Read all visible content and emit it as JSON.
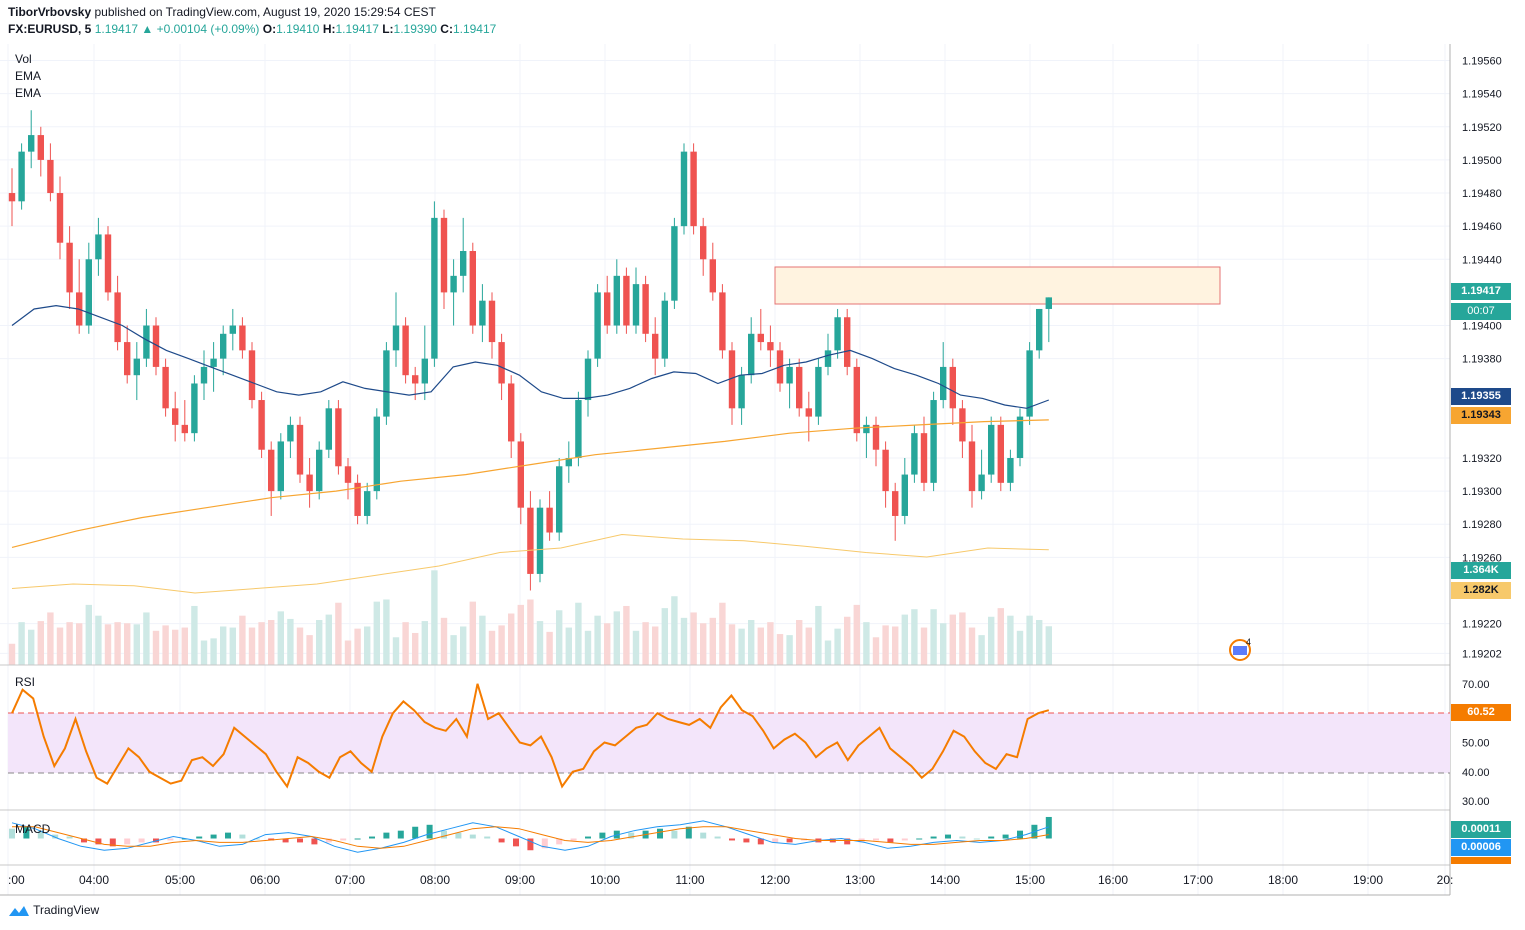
{
  "header": {
    "publisher": "TiborVrbovsky",
    "published_text": "published on TradingView.com, August 19, 2020 15:29:54 CEST",
    "symbol": "FX:EURUSD, 5",
    "last": "1.19417",
    "change": "▲ +0.00104 (+0.09%)",
    "o_label": "O:",
    "o": "1.19410",
    "h_label": "H:",
    "h": "1.19417",
    "l_label": "L:",
    "l": "1.19390",
    "c_label": "C:",
    "c": "1.19417"
  },
  "indicators": {
    "vol": "Vol",
    "ema1": "EMA",
    "ema2": "EMA",
    "rsi": "RSI",
    "macd": "MACD"
  },
  "price_axis": [
    "1.19560",
    "1.19540",
    "1.19520",
    "1.19500",
    "1.19480",
    "1.19460",
    "1.19440",
    "1.19400",
    "1.19380",
    "1.19320",
    "1.19300",
    "1.19280",
    "1.19260",
    "1.19220",
    "1.19202"
  ],
  "price_boxes": {
    "last": "1.19417",
    "countdown": "00:07",
    "ema_fast": "1.19355",
    "ema_slow": "1.19343",
    "vol": "1.364K",
    "vol_ma": "1.282K",
    "rsi": "60.52",
    "macd_hist": "0.00011",
    "macd_line": "0.00006"
  },
  "rsi_axis": [
    "70.00",
    "50.00",
    "40.00",
    "30.00"
  ],
  "time_axis": [
    ":00",
    "04:00",
    "05:00",
    "06:00",
    "07:00",
    "08:00",
    "09:00",
    "10:00",
    "11:00",
    "12:00",
    "13:00",
    "14:00",
    "15:00",
    "16:00",
    "17:00",
    "18:00",
    "19:00",
    "20:"
  ],
  "footer": {
    "brand": "TradingView"
  },
  "colors": {
    "up": "#26a69a",
    "down": "#ef5350",
    "ema_fast": "#1e4a8a",
    "ema_slow": "#f7a531",
    "rsi": "#f57c00",
    "rsi_band": "#f3e5fa"
  },
  "chart_data": {
    "type": "candlestick",
    "instrument": "FX:EURUSD",
    "interval": "5",
    "y_range": [
      1.19195,
      1.1957
    ],
    "candles": [
      [
        1.1948,
        1.19495,
        1.1946,
        1.19475
      ],
      [
        1.19475,
        1.1951,
        1.1947,
        1.19505
      ],
      [
        1.19505,
        1.1953,
        1.19495,
        1.19515
      ],
      [
        1.19515,
        1.1952,
        1.1949,
        1.195
      ],
      [
        1.195,
        1.1951,
        1.19475,
        1.1948
      ],
      [
        1.1948,
        1.1949,
        1.1944,
        1.1945
      ],
      [
        1.1945,
        1.1946,
        1.1941,
        1.1942
      ],
      [
        1.1942,
        1.1944,
        1.19395,
        1.194
      ],
      [
        1.194,
        1.1945,
        1.19395,
        1.1944
      ],
      [
        1.1944,
        1.19465,
        1.1943,
        1.19455
      ],
      [
        1.19455,
        1.1946,
        1.19415,
        1.1942
      ],
      [
        1.1942,
        1.1943,
        1.19385,
        1.1939
      ],
      [
        1.1939,
        1.194,
        1.19365,
        1.1937
      ],
      [
        1.1937,
        1.1939,
        1.19355,
        1.1938
      ],
      [
        1.1938,
        1.1941,
        1.19375,
        1.194
      ],
      [
        1.194,
        1.19405,
        1.1937,
        1.19375
      ],
      [
        1.19375,
        1.1938,
        1.19345,
        1.1935
      ],
      [
        1.1935,
        1.1936,
        1.1933,
        1.1934
      ],
      [
        1.1934,
        1.19355,
        1.1933,
        1.19335
      ],
      [
        1.19335,
        1.1937,
        1.1933,
        1.19365
      ],
      [
        1.19365,
        1.19385,
        1.19355,
        1.19375
      ],
      [
        1.19375,
        1.1939,
        1.1936,
        1.1938
      ],
      [
        1.1938,
        1.194,
        1.1937,
        1.19395
      ],
      [
        1.19395,
        1.1941,
        1.19385,
        1.194
      ],
      [
        1.194,
        1.19405,
        1.1938,
        1.19385
      ],
      [
        1.19385,
        1.1939,
        1.1935,
        1.19355
      ],
      [
        1.19355,
        1.1936,
        1.1932,
        1.19325
      ],
      [
        1.19325,
        1.1933,
        1.19285,
        1.193
      ],
      [
        1.193,
        1.19335,
        1.19295,
        1.1933
      ],
      [
        1.1933,
        1.19345,
        1.1932,
        1.1934
      ],
      [
        1.1934,
        1.19345,
        1.19305,
        1.1931
      ],
      [
        1.1931,
        1.1932,
        1.1929,
        1.193
      ],
      [
        1.193,
        1.1933,
        1.19295,
        1.19325
      ],
      [
        1.19325,
        1.19355,
        1.1932,
        1.1935
      ],
      [
        1.1935,
        1.19355,
        1.1931,
        1.19315
      ],
      [
        1.19315,
        1.1932,
        1.19295,
        1.19305
      ],
      [
        1.19305,
        1.1931,
        1.1928,
        1.19285
      ],
      [
        1.19285,
        1.19305,
        1.1928,
        1.193
      ],
      [
        1.193,
        1.1935,
        1.19295,
        1.19345
      ],
      [
        1.19345,
        1.1939,
        1.1934,
        1.19385
      ],
      [
        1.19385,
        1.1942,
        1.19375,
        1.194
      ],
      [
        1.194,
        1.19405,
        1.19365,
        1.1937
      ],
      [
        1.1937,
        1.19375,
        1.19355,
        1.19365
      ],
      [
        1.19365,
        1.194,
        1.19355,
        1.1938
      ],
      [
        1.1938,
        1.19475,
        1.19375,
        1.19465
      ],
      [
        1.19465,
        1.1947,
        1.1941,
        1.1942
      ],
      [
        1.1942,
        1.1944,
        1.194,
        1.1943
      ],
      [
        1.1943,
        1.19465,
        1.1942,
        1.19445
      ],
      [
        1.19445,
        1.1945,
        1.19395,
        1.194
      ],
      [
        1.194,
        1.19425,
        1.1939,
        1.19415
      ],
      [
        1.19415,
        1.1942,
        1.1938,
        1.1939
      ],
      [
        1.1939,
        1.19395,
        1.19355,
        1.19365
      ],
      [
        1.19365,
        1.1937,
        1.1932,
        1.1933
      ],
      [
        1.1933,
        1.19335,
        1.1928,
        1.1929
      ],
      [
        1.1929,
        1.193,
        1.1924,
        1.1925
      ],
      [
        1.1925,
        1.19295,
        1.19245,
        1.1929
      ],
      [
        1.1929,
        1.193,
        1.1927,
        1.19275
      ],
      [
        1.19275,
        1.1932,
        1.1927,
        1.19315
      ],
      [
        1.19315,
        1.1933,
        1.19305,
        1.1932
      ],
      [
        1.1932,
        1.1936,
        1.19315,
        1.19355
      ],
      [
        1.19355,
        1.19385,
        1.19345,
        1.1938
      ],
      [
        1.1938,
        1.19425,
        1.19375,
        1.1942
      ],
      [
        1.1942,
        1.1943,
        1.19395,
        1.194
      ],
      [
        1.194,
        1.1944,
        1.19395,
        1.1943
      ],
      [
        1.1943,
        1.19435,
        1.19395,
        1.194
      ],
      [
        1.194,
        1.19435,
        1.19395,
        1.19425
      ],
      [
        1.19425,
        1.1943,
        1.1939,
        1.19395
      ],
      [
        1.19395,
        1.19405,
        1.1937,
        1.1938
      ],
      [
        1.1938,
        1.1942,
        1.19375,
        1.19415
      ],
      [
        1.19415,
        1.19465,
        1.1941,
        1.1946
      ],
      [
        1.1946,
        1.1951,
        1.19455,
        1.19505
      ],
      [
        1.19505,
        1.1951,
        1.19455,
        1.1946
      ],
      [
        1.1946,
        1.19465,
        1.1943,
        1.1944
      ],
      [
        1.1944,
        1.1945,
        1.19415,
        1.1942
      ],
      [
        1.1942,
        1.19425,
        1.1938,
        1.19385
      ],
      [
        1.19385,
        1.1939,
        1.1934,
        1.1935
      ],
      [
        1.1935,
        1.19375,
        1.1934,
        1.1937
      ],
      [
        1.1937,
        1.19405,
        1.19365,
        1.19395
      ],
      [
        1.19395,
        1.1941,
        1.19385,
        1.1939
      ],
      [
        1.1939,
        1.194,
        1.19375,
        1.19385
      ],
      [
        1.19385,
        1.1939,
        1.1936,
        1.19365
      ],
      [
        1.19365,
        1.1938,
        1.1935,
        1.19375
      ],
      [
        1.19375,
        1.1938,
        1.19345,
        1.1935
      ],
      [
        1.1935,
        1.1936,
        1.1933,
        1.19345
      ],
      [
        1.19345,
        1.1938,
        1.1934,
        1.19375
      ],
      [
        1.19375,
        1.19395,
        1.1937,
        1.19385
      ],
      [
        1.19385,
        1.1941,
        1.1938,
        1.19405
      ],
      [
        1.19405,
        1.1941,
        1.1937,
        1.19375
      ],
      [
        1.19375,
        1.1938,
        1.1933,
        1.19335
      ],
      [
        1.19335,
        1.19345,
        1.1932,
        1.1934
      ],
      [
        1.1934,
        1.19345,
        1.19315,
        1.19325
      ],
      [
        1.19325,
        1.1933,
        1.1929,
        1.193
      ],
      [
        1.193,
        1.19305,
        1.1927,
        1.19285
      ],
      [
        1.19285,
        1.1932,
        1.1928,
        1.1931
      ],
      [
        1.1931,
        1.1934,
        1.19305,
        1.19335
      ],
      [
        1.19335,
        1.19345,
        1.193,
        1.19305
      ],
      [
        1.19305,
        1.1936,
        1.193,
        1.19355
      ],
      [
        1.19355,
        1.1939,
        1.1935,
        1.19375
      ],
      [
        1.19375,
        1.1938,
        1.1934,
        1.1935
      ],
      [
        1.1935,
        1.19355,
        1.1932,
        1.1933
      ],
      [
        1.1933,
        1.1934,
        1.1929,
        1.193
      ],
      [
        1.193,
        1.19325,
        1.19295,
        1.1931
      ],
      [
        1.1931,
        1.19345,
        1.19305,
        1.1934
      ],
      [
        1.1934,
        1.19345,
        1.193,
        1.19305
      ],
      [
        1.19305,
        1.19325,
        1.193,
        1.1932
      ],
      [
        1.1932,
        1.1935,
        1.19315,
        1.19345
      ],
      [
        1.19345,
        1.1939,
        1.1934,
        1.19385
      ],
      [
        1.19385,
        1.1941,
        1.1938,
        1.1941
      ],
      [
        1.1941,
        1.19417,
        1.1939,
        1.19417
      ]
    ],
    "ema_fast": [
      1.194,
      1.1941,
      1.19412,
      1.1941,
      1.19405,
      1.194,
      1.19392,
      1.19385,
      1.1938,
      1.19375,
      1.1937,
      1.19365,
      1.1936,
      1.19358,
      1.1936,
      1.19366,
      1.19362,
      1.1936,
      1.19358,
      1.1936,
      1.19375,
      1.19378,
      1.19376,
      1.1937,
      1.1936,
      1.19356,
      1.19356,
      1.19358,
      1.19362,
      1.19368,
      1.19372,
      1.19371,
      1.19365,
      1.1937,
      1.19371,
      1.19376,
      1.19378,
      1.19382,
      1.19385,
      1.1938,
      1.19374,
      1.1937,
      1.19365,
      1.19358,
      1.19356,
      1.19352,
      1.1935,
      1.19355
    ],
    "ema_slow": [
      1.19266,
      1.19276,
      1.19284,
      1.1929,
      1.19296,
      1.193,
      1.19306,
      1.1931,
      1.19316,
      1.19322,
      1.19326,
      1.1933,
      1.19335,
      1.19338,
      1.1934,
      1.19342,
      1.19343
    ],
    "volume_range": [
      0,
      1.5
    ],
    "rsi": {
      "ylim": [
        27,
        73
      ],
      "upper": 60,
      "lower": 40,
      "values": [
        60,
        68,
        65,
        52,
        42,
        48,
        58,
        47,
        38,
        36,
        42,
        48,
        45,
        40,
        38,
        36,
        37,
        44,
        45,
        42,
        46,
        55,
        52,
        49,
        46,
        40,
        35,
        45,
        43,
        40,
        38,
        45,
        47,
        43,
        40,
        52,
        60,
        64,
        61,
        57,
        55,
        54,
        58,
        52,
        70,
        58,
        60,
        55,
        50,
        49,
        52,
        45,
        35,
        40,
        41,
        47,
        50,
        49,
        52,
        55,
        56,
        60,
        58,
        57,
        56,
        58,
        55,
        62,
        66,
        61,
        59,
        54,
        48,
        51,
        53,
        50,
        45,
        48,
        50,
        44,
        49,
        52,
        55,
        48,
        45,
        42,
        38,
        41,
        47,
        54,
        52,
        47,
        43,
        41,
        46,
        45,
        58,
        60,
        61
      ]
    },
    "macd": {
      "hist": [
        5e-05,
        6e-05,
        4e-05,
        2e-05,
        1e-05,
        -2e-05,
        -3e-05,
        -4e-05,
        -3e-05,
        -2e-05,
        -2e-05,
        -1e-05,
        0.0,
        1e-05,
        2e-05,
        3e-05,
        2e-05,
        0.0,
        -1e-05,
        -2e-05,
        -2e-05,
        -3e-05,
        -2e-05,
        -1e-05,
        0.0,
        1e-05,
        3e-05,
        4e-05,
        6e-05,
        7e-05,
        4e-05,
        3e-05,
        2e-05,
        1e-05,
        -2e-05,
        -4e-05,
        -6e-05,
        -5e-05,
        -3e-05,
        -1e-05,
        1e-05,
        3e-05,
        4e-05,
        3e-05,
        4e-05,
        5e-05,
        4e-05,
        6e-05,
        3e-05,
        1e-05,
        -1e-05,
        -2e-05,
        -3e-05,
        -2e-05,
        -2e-05,
        -1e-05,
        -2e-05,
        -2e-05,
        -3e-05,
        -2e-05,
        -1e-05,
        -2e-05,
        -1e-05,
        0.0,
        1e-05,
        2e-05,
        1e-05,
        0.0,
        1e-05,
        2e-05,
        4e-05,
        7e-05,
        0.00011
      ],
      "line": [
        8e-05,
        5e-05,
        0.0,
        -4e-05,
        -6e-05,
        -5e-05,
        -2e-05,
        1e-05,
        -1e-05,
        -4e-05,
        -3e-05,
        2e-05,
        3e-05,
        1e-05,
        -4e-05,
        -7e-05,
        -5e-05,
        -2e-05,
        2e-05,
        5e-05,
        8e-05,
        6e-05,
        1e-05,
        -4e-05,
        -6e-05,
        -4e-05,
        1e-05,
        4e-05,
        6e-05,
        7e-05,
        9e-05,
        6e-05,
        2e-05,
        -2e-05,
        -3e-05,
        -1e-05,
        0.0,
        -2e-05,
        -5e-05,
        -4e-05,
        -2e-05,
        -1e-05,
        -2e-05,
        -1e-05,
        2e-05,
        6e-05
      ],
      "signal": [
        6e-05,
        6e-05,
        3e-05,
        0.0,
        -3e-05,
        -4e-05,
        -4e-05,
        -2e-05,
        -1e-05,
        -2e-05,
        -2e-05,
        -1e-05,
        0.0,
        1e-05,
        -1e-05,
        -4e-05,
        -5e-05,
        -4e-05,
        -1e-05,
        2e-05,
        5e-05,
        6e-05,
        5e-05,
        2e-05,
        -1e-05,
        -2e-05,
        -1e-05,
        1e-05,
        3e-05,
        5e-05,
        6e-05,
        6e-05,
        4e-05,
        2e-05,
        0.0,
        -1e-05,
        -1e-05,
        -1e-05,
        -2e-05,
        -3e-05,
        -3e-05,
        -2e-05,
        -1e-05,
        -1e-05,
        0.0,
        2e-05
      ]
    }
  }
}
